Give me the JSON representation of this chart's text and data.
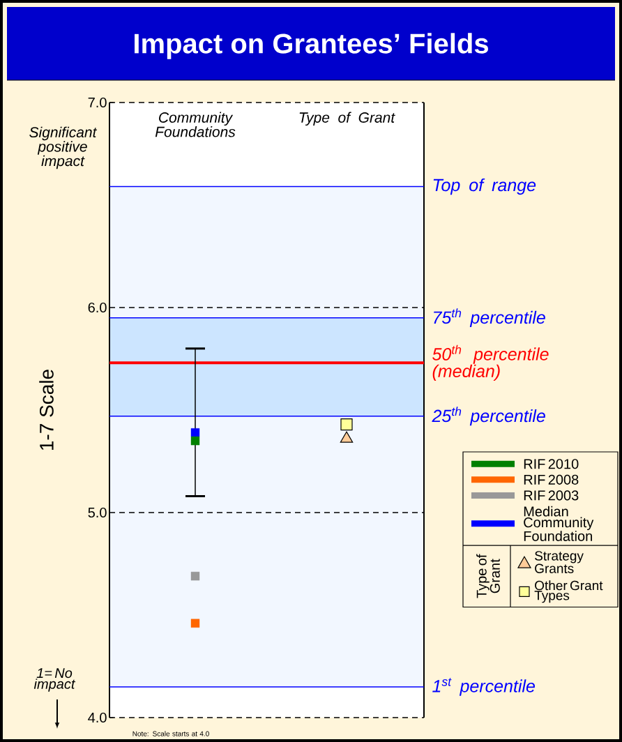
{
  "chart_data": {
    "type": "scatter",
    "title": "Impact on Grantees’ Fields",
    "ylabel": "1-7 Scale",
    "categories": [
      "Community Foundations",
      "Type of Grant"
    ],
    "series": [
      {
        "name": "RIF 2010",
        "color": "#008000",
        "values": [
          5.35,
          null
        ]
      },
      {
        "name": "RIF 2008",
        "color": "#FF6600",
        "values": [
          4.46,
          null
        ]
      },
      {
        "name": "RIF 2003",
        "color": "#999999",
        "values": [
          4.69,
          null
        ]
      },
      {
        "name": "Median Community Foundation",
        "color": "#0000FF",
        "values": [
          5.39,
          null
        ],
        "errors": [
          [
            5.08,
            5.8
          ],
          null
        ]
      },
      {
        "name": "Strategy Grants",
        "color": "#FFCC99",
        "marker": "triangle",
        "values": [
          null,
          5.36
        ]
      },
      {
        "name": "Other Grant Types",
        "color": "#FFFF99",
        "marker": "square",
        "values": [
          null,
          5.43
        ]
      }
    ],
    "legend_title": "Type of Grant",
    "legend": "right",
    "marker": "square",
    "ylim": [
      4,
      7
    ],
    "yticks": [
      {
        "value": 4,
        "label": "4.0"
      },
      {
        "value": 5,
        "label": "5.0"
      },
      {
        "value": 6,
        "label": "6.0"
      },
      {
        "value": 7,
        "label": "7.0"
      }
    ],
    "grid": "y",
    "bands": [
      {
        "axis": "y",
        "from": 4.15,
        "to": 6.59,
        "color": "#F2F7FF"
      },
      {
        "axis": "y",
        "from": 5.47,
        "to": 5.95,
        "color": "#CCE5FF"
      }
    ],
    "ref_lines": [
      {
        "axis": "y",
        "value": 6.59,
        "label": "Top of range",
        "color": "#0000FF"
      },
      {
        "axis": "y",
        "value": 5.95,
        "label": "75$^{th}$ percentile",
        "color": "#0000FF"
      },
      {
        "axis": "y",
        "value": 5.73,
        "label": "50$^{th}$ percentile (median)",
        "color": "#FF0000"
      },
      {
        "axis": "y",
        "value": 5.47,
        "label": "25$^{th}$ percentile",
        "color": "#0000FF"
      },
      {
        "axis": "y",
        "value": 4.15,
        "label": "1$^{st}$ percentile",
        "color": "#0000FF"
      }
    ],
    "annotations": [
      "Significant positive impact",
      "1= No impact",
      "Note: Scale starts at 4.0"
    ]
  }
}
